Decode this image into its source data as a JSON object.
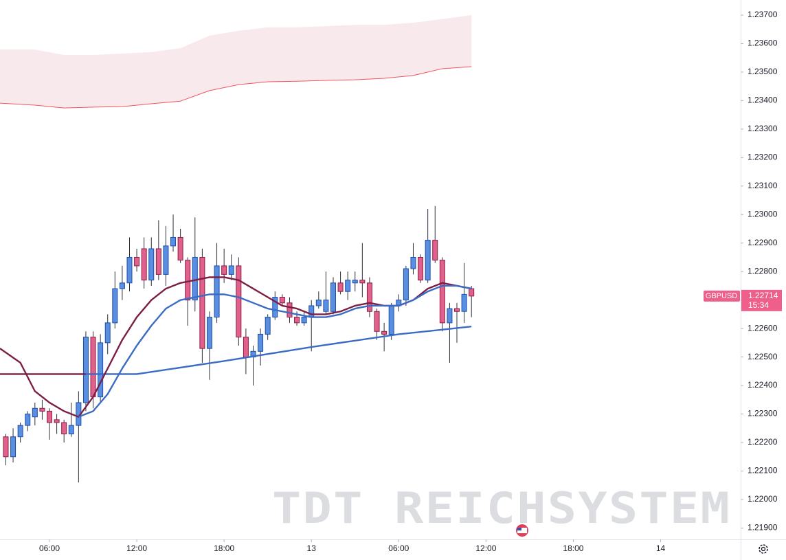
{
  "chart_data": {
    "type": "candlestick",
    "symbol": "GBPUSD",
    "last_price": 1.22714,
    "countdown": "15:34",
    "watermark": "TDT REICHSYSTEM",
    "up_color": "#5a8ee0",
    "up_border": "#1d4fa8",
    "down_color": "#e0628c",
    "down_border": "#8c1d45",
    "wick_color": "#2a2e39",
    "grid": false,
    "xlim": [
      2.6,
      53.5
    ],
    "xticks": [
      {
        "value": 6,
        "label": "06:00"
      },
      {
        "value": 12,
        "label": "12:00"
      },
      {
        "value": 18,
        "label": "18:00"
      },
      {
        "value": 24,
        "label": "13"
      },
      {
        "value": 30,
        "label": "06:00"
      },
      {
        "value": 36,
        "label": "12:00"
      },
      {
        "value": 42,
        "label": "18:00"
      },
      {
        "value": 48,
        "label": "14"
      }
    ],
    "ylim": [
      1.2186,
      1.23753
    ],
    "yticks": [
      {
        "value": 1.219,
        "label": "1.21900"
      },
      {
        "value": 1.22,
        "label": "1.22000"
      },
      {
        "value": 1.221,
        "label": "1.22100"
      },
      {
        "value": 1.222,
        "label": "1.22200"
      },
      {
        "value": 1.223,
        "label": "1.22300"
      },
      {
        "value": 1.224,
        "label": "1.22400"
      },
      {
        "value": 1.225,
        "label": "1.22500"
      },
      {
        "value": 1.226,
        "label": "1.22600"
      },
      {
        "value": 1.227,
        "label": "1.22700"
      },
      {
        "value": 1.228,
        "label": "1.22800"
      },
      {
        "value": 1.229,
        "label": "1.22900"
      },
      {
        "value": 1.23,
        "label": "1.23000"
      },
      {
        "value": 1.231,
        "label": "1.23100"
      },
      {
        "value": 1.232,
        "label": "1.23200"
      },
      {
        "value": 1.233,
        "label": "1.23300"
      },
      {
        "value": 1.234,
        "label": "1.23400"
      },
      {
        "value": 1.235,
        "label": "1.23500"
      },
      {
        "value": 1.236,
        "label": "1.23600"
      },
      {
        "value": 1.237,
        "label": "1.23700"
      }
    ],
    "x": [
      3,
      3.5,
      4,
      4.5,
      5,
      5.5,
      6,
      6.5,
      7,
      7.5,
      8,
      8.5,
      9,
      9.5,
      10,
      10.5,
      11,
      11.5,
      12,
      12.5,
      13,
      13.5,
      14,
      14.5,
      15,
      15.5,
      16,
      16.5,
      17,
      17.5,
      18,
      18.5,
      19,
      19.5,
      20,
      20.5,
      21,
      21.5,
      22,
      22.5,
      23,
      23.5,
      24,
      24.5,
      25,
      25.5,
      26,
      26.5,
      27,
      27.5,
      28,
      28.5,
      29,
      29.5,
      30,
      30.5,
      31,
      31.5,
      32,
      32.5,
      33,
      33.5,
      34,
      34.5,
      35
    ],
    "open": [
      1.2222,
      1.2215,
      1.2222,
      1.2226,
      1.2229,
      1.2232,
      1.2231,
      1.2228,
      1.2227,
      1.2223,
      1.2226,
      1.2234,
      1.2257,
      1.2236,
      1.2255,
      1.2262,
      1.2274,
      1.2276,
      1.2285,
      1.2288,
      1.2277,
      1.2288,
      1.2279,
      1.2289,
      1.2292,
      1.2284,
      1.227,
      1.2285,
      1.2253,
      1.2264,
      1.2282,
      1.2279,
      1.2282,
      1.2257,
      1.225,
      1.2252,
      1.2258,
      1.2264,
      1.2271,
      1.2269,
      1.2264,
      1.2262,
      1.2264,
      1.2268,
      1.2266,
      1.2266,
      1.2276,
      1.2273,
      1.2276,
      1.2277,
      1.2276,
      1.2266,
      1.2259,
      1.2258,
      1.2268,
      1.227,
      1.2281,
      1.2285,
      1.2277,
      1.2291,
      1.2284,
      1.2262,
      1.2267,
      1.2266,
      1.2274
    ],
    "high": [
      1.2223,
      1.2225,
      1.2227,
      1.2231,
      1.2234,
      1.2235,
      1.2232,
      1.223,
      1.2228,
      1.2234,
      1.2238,
      1.2259,
      1.2259,
      1.2258,
      1.2265,
      1.228,
      1.2282,
      1.2292,
      1.2288,
      1.2292,
      1.2292,
      1.2298,
      1.2296,
      1.23,
      1.2295,
      1.2285,
      1.2299,
      1.2288,
      1.2266,
      1.229,
      1.2288,
      1.2286,
      1.2285,
      1.226,
      1.2254,
      1.226,
      1.2265,
      1.2273,
      1.2272,
      1.2271,
      1.2266,
      1.2266,
      1.227,
      1.2273,
      1.228,
      1.2278,
      1.228,
      1.228,
      1.228,
      1.229,
      1.2278,
      1.2267,
      1.2262,
      1.2269,
      1.2272,
      1.2282,
      1.229,
      1.2286,
      1.2302,
      1.2303,
      1.2285,
      1.2269,
      1.2269,
      1.2283,
      1.2275
    ],
    "low": [
      1.2212,
      1.2213,
      1.222,
      1.2224,
      1.2226,
      1.2228,
      1.2221,
      1.2223,
      1.222,
      1.2222,
      1.2206,
      1.2231,
      1.2232,
      1.2234,
      1.2251,
      1.226,
      1.227,
      1.2273,
      1.228,
      1.2274,
      1.2275,
      1.2277,
      1.2275,
      1.2287,
      1.2283,
      1.2261,
      1.2266,
      1.2248,
      1.2242,
      1.2262,
      1.2276,
      1.2277,
      1.2254,
      1.2244,
      1.224,
      1.2247,
      1.2256,
      1.2263,
      1.2268,
      1.2262,
      1.2261,
      1.2261,
      1.2252,
      1.2267,
      1.2265,
      1.2265,
      1.2272,
      1.227,
      1.2273,
      1.2271,
      1.2264,
      1.2256,
      1.2252,
      1.2256,
      1.2266,
      1.2268,
      1.2279,
      1.2276,
      1.2276,
      1.2283,
      1.2259,
      1.2248,
      1.2255,
      1.2262,
      1.2264
    ],
    "close": [
      1.2215,
      1.2222,
      1.2226,
      1.223,
      1.2232,
      1.2231,
      1.2227,
      1.2227,
      1.2223,
      1.2226,
      1.2234,
      1.2257,
      1.2236,
      1.2255,
      1.2262,
      1.2274,
      1.2276,
      1.2285,
      1.2282,
      1.2277,
      1.2288,
      1.2279,
      1.2289,
      1.2292,
      1.2284,
      1.227,
      1.2285,
      1.2253,
      1.2264,
      1.2282,
      1.2279,
      1.2282,
      1.2257,
      1.225,
      1.2252,
      1.2258,
      1.2264,
      1.2271,
      1.2269,
      1.2264,
      1.2262,
      1.2264,
      1.2268,
      1.227,
      1.227,
      1.2276,
      1.2273,
      1.2277,
      1.2277,
      1.2276,
      1.2266,
      1.2259,
      1.2258,
      1.2268,
      1.227,
      1.2281,
      1.2285,
      1.2277,
      1.2291,
      1.2284,
      1.2262,
      1.2267,
      1.2266,
      1.2272,
      1.22714
    ],
    "lines": [
      {
        "color": "#f1545e",
        "width": 1,
        "x": [
          2.6,
          5,
          7,
          9,
          11,
          13,
          15,
          17,
          19,
          21,
          23,
          25,
          27,
          29,
          31,
          33,
          35
        ],
        "values": [
          1.23391,
          1.23384,
          1.23374,
          1.23377,
          1.23379,
          1.23389,
          1.23398,
          1.23435,
          1.23456,
          1.23466,
          1.23468,
          1.23471,
          1.23473,
          1.23478,
          1.23488,
          1.23512,
          1.23519
        ],
        "band": {
          "color": "#f8e9ec",
          "values": [
            1.23579,
            1.23579,
            1.2356,
            1.2356,
            1.23565,
            1.2357,
            1.23584,
            1.23628,
            1.23645,
            1.23657,
            1.23657,
            1.23661,
            1.23666,
            1.23666,
            1.23673,
            1.23686,
            1.237
          ]
        }
      },
      {
        "color": "#7b1f45",
        "width": 2.4,
        "x": [
          2.6,
          8.5
        ],
        "values": [
          1.2244,
          1.2244
        ]
      },
      {
        "color": "#3b6cc4",
        "width": 2.4,
        "x": [
          8.5,
          12,
          18,
          24,
          30,
          35
        ],
        "values": [
          1.2244,
          1.2244,
          1.22486,
          1.22535,
          1.2258,
          1.22607
        ]
      },
      {
        "color": "#7b1f45",
        "width": 2.4,
        "x": [
          2.6,
          4,
          5,
          6,
          7,
          8,
          9,
          10,
          11,
          12,
          13,
          14,
          15,
          16,
          17,
          18,
          19,
          20,
          21,
          22,
          23,
          24,
          25,
          26,
          27,
          28,
          29,
          30,
          31,
          32,
          33,
          34,
          35
        ],
        "values": [
          1.2253,
          1.2248,
          1.2238,
          1.2234,
          1.2231,
          1.2229,
          1.2236,
          1.2246,
          1.2256,
          1.2264,
          1.227,
          1.2274,
          1.2276,
          1.2277,
          1.2278,
          1.2278,
          1.2277,
          1.2274,
          1.2271,
          1.2268,
          1.2267,
          1.2265,
          1.2265,
          1.2266,
          1.2268,
          1.2269,
          1.2268,
          1.2268,
          1.227,
          1.2274,
          1.2276,
          1.2275,
          1.2274
        ]
      },
      {
        "color": "#3b6cc4",
        "width": 2.4,
        "x": [
          8,
          9,
          10,
          11,
          12,
          13,
          14,
          15,
          16,
          17,
          18,
          19,
          20,
          21,
          22,
          23,
          24,
          25,
          26,
          27,
          28,
          29,
          30,
          31,
          32,
          33,
          34,
          35
        ],
        "values": [
          1.2229,
          1.2231,
          1.2237,
          1.2246,
          1.2254,
          1.2261,
          1.2267,
          1.227,
          1.2271,
          1.2272,
          1.2272,
          1.2271,
          1.2269,
          1.2267,
          1.2266,
          1.2265,
          1.2264,
          1.2264,
          1.2265,
          1.2267,
          1.2268,
          1.2268,
          1.2268,
          1.227,
          1.2273,
          1.2275,
          1.2275,
          1.2274
        ]
      }
    ]
  }
}
